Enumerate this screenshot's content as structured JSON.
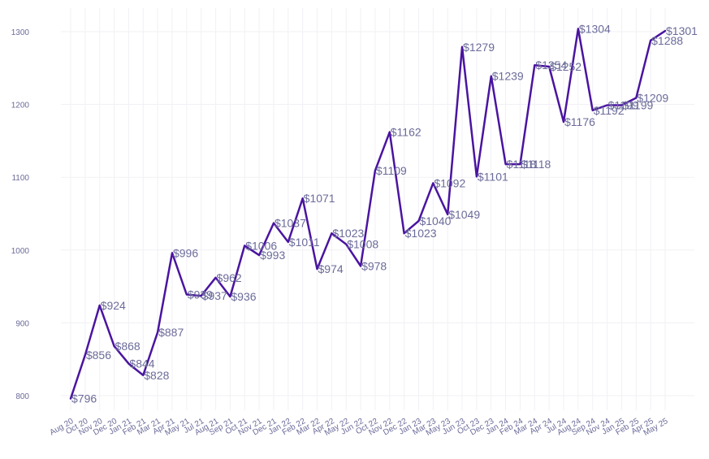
{
  "chart_data": {
    "type": "line",
    "title": "",
    "xlabel": "",
    "ylabel": "",
    "categories": [
      "Aug 20",
      "Oct 20",
      "Nov 20",
      "Dec 20",
      "Jan 21",
      "Feb 21",
      "Mar 21",
      "Apr 21",
      "May 21",
      "Jul 21",
      "Aug 21",
      "Sep 21",
      "Oct 21",
      "Nov 21",
      "Dec 21",
      "Jan 22",
      "Feb 22",
      "Mar 22",
      "Apr 22",
      "May 22",
      "Jun 22",
      "Oct 22",
      "Nov 22",
      "Dec 22",
      "Jan 23",
      "Mar 23",
      "May 23",
      "Jun 23",
      "Oct 23",
      "Dec 23",
      "Jan 24",
      "Feb 24",
      "Mar 24",
      "Apr 24",
      "Jul 24",
      "Aug 24",
      "Sep 24",
      "Nov 24",
      "Jan 25",
      "Feb 25",
      "Apr 25",
      "May 25"
    ],
    "series": [
      {
        "values": [
          796,
          856,
          924,
          868,
          844,
          828,
          887,
          996,
          939,
          937,
          962,
          936,
          1006,
          993,
          1037,
          1011,
          1071,
          974,
          1023,
          1008,
          978,
          1109,
          1162,
          1023,
          1040,
          1092,
          1049,
          1279,
          1101,
          1239,
          1118,
          1118,
          1254,
          1252,
          1176,
          1304,
          1192,
          1199,
          1199,
          1209,
          1288,
          1301
        ],
        "data_labels": [
          "$796",
          "$856",
          "$924",
          "$868",
          "$844",
          "$828",
          "$887",
          "$996",
          "$939",
          "$937",
          "$962",
          "$936",
          "$1006",
          "$993",
          "$1037",
          "$1011",
          "$1071",
          "$974",
          "$1023",
          "$1008",
          "$978",
          "$1109",
          "$1162",
          "$1023",
          "$1040",
          "$1092",
          "$1049",
          "$1279",
          "$1101",
          "$1239",
          "$1118",
          "$1118",
          "$1254",
          "$1252",
          "$1176",
          "$1304",
          "$1192",
          "$1199",
          "$1199",
          "$1209",
          "$1288",
          "$1301"
        ]
      }
    ],
    "yticks": [
      800,
      900,
      1000,
      1100,
      1200,
      1300
    ],
    "ylim": [
      770,
      1330
    ],
    "grid": true,
    "colors": {
      "line": "#4a14a0",
      "text": "#6b6b9a",
      "grid": "#f1f1f6"
    }
  }
}
